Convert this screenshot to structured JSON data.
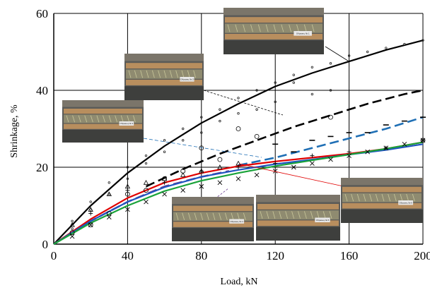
{
  "chart_data": {
    "type": "scatter",
    "xlabel": "Load, kN",
    "ylabel": "Shrinkage, %",
    "xlim": [
      0,
      200
    ],
    "ylim": [
      0,
      60
    ],
    "x_ticks": [
      0,
      40,
      80,
      120,
      160,
      200
    ],
    "y_ticks": [
      0,
      20,
      40,
      60
    ],
    "grid": true,
    "legend": "none",
    "curves": [
      {
        "style": "solid",
        "color": "#000000",
        "x": [
          0,
          20,
          40,
          60,
          80,
          100,
          120,
          140,
          160,
          180,
          200
        ],
        "y": [
          0,
          10,
          18.5,
          25.5,
          31.5,
          36.5,
          41,
          44.5,
          47.5,
          50.5,
          53
        ]
      },
      {
        "style": "dash",
        "color": "#000000",
        "x": [
          50,
          70,
          90,
          110,
          130,
          150,
          170,
          190,
          200
        ],
        "y": [
          15,
          19.5,
          23.5,
          27,
          30.5,
          33.5,
          36.5,
          39,
          40
        ]
      },
      {
        "style": "dash",
        "color": "#1f6fb5",
        "x": [
          100,
          120,
          140,
          160,
          180,
          200
        ],
        "y": [
          20.5,
          22.5,
          25,
          27.5,
          30,
          33
        ]
      },
      {
        "style": "solid",
        "color": "#e00000",
        "x": [
          0,
          20,
          40,
          60,
          80,
          100,
          120,
          140,
          160,
          180,
          200
        ],
        "y": [
          0,
          6.5,
          12,
          16,
          18.5,
          20.3,
          21.5,
          22.5,
          23.5,
          24.8,
          26.5
        ]
      },
      {
        "style": "dash",
        "color": "#6a3d8f",
        "x": [
          0,
          20,
          40,
          60,
          80,
          95
        ],
        "y": [
          0,
          6,
          11,
          15,
          17.5,
          19
        ]
      },
      {
        "style": "solid",
        "color": "#1f55c0",
        "x": [
          0,
          20,
          40,
          60,
          80,
          100,
          120,
          140,
          160,
          180,
          200
        ],
        "y": [
          0,
          6,
          11,
          14.8,
          17.5,
          19.3,
          20.8,
          22,
          23.3,
          24.5,
          26
        ]
      },
      {
        "style": "solid",
        "color": "#1aa33a",
        "x": [
          0,
          20,
          40,
          60,
          80,
          100,
          120,
          140,
          160,
          180,
          200
        ],
        "y": [
          0,
          5.5,
          10,
          13.8,
          16.5,
          18.5,
          20.3,
          21.8,
          23.3,
          24.8,
          26.5
        ]
      }
    ],
    "points": [
      {
        "marker": "dot",
        "x": [
          10,
          20,
          30,
          40,
          50,
          60,
          70,
          80,
          90,
          100,
          110,
          120,
          130,
          140,
          150,
          160,
          170,
          180,
          190,
          200
        ],
        "y": [
          6,
          11,
          16,
          20,
          23,
          27,
          30,
          33,
          35,
          38,
          40,
          42,
          44,
          46,
          47,
          49,
          50,
          51,
          52,
          53
        ]
      },
      {
        "marker": "dot",
        "x": [
          10,
          20,
          30,
          40,
          50,
          60,
          70,
          80,
          90,
          100,
          110,
          120,
          130,
          140,
          150
        ],
        "y": [
          4,
          9,
          13,
          17,
          21,
          24,
          27,
          29,
          32,
          34,
          35,
          37,
          42,
          39,
          40
        ]
      },
      {
        "marker": "circle",
        "x": [
          10,
          20,
          30,
          40,
          50,
          60,
          70,
          80,
          90,
          100,
          110,
          150,
          200
        ],
        "y": [
          3,
          5,
          8,
          13,
          14,
          17,
          19,
          25,
          22,
          30,
          28,
          33,
          27
        ]
      },
      {
        "marker": "triangle",
        "x": [
          10,
          20,
          30,
          40,
          50,
          60,
          70,
          80,
          90,
          100
        ],
        "y": [
          5,
          9,
          13,
          15,
          16,
          17,
          18,
          19,
          20,
          21
        ]
      },
      {
        "marker": "dash",
        "x": [
          120,
          130,
          140,
          150,
          160,
          170,
          180,
          190,
          200
        ],
        "y": [
          26,
          24,
          27,
          28,
          29,
          29,
          31,
          32,
          33
        ]
      },
      {
        "marker": "plus",
        "x": [
          20,
          40,
          60,
          80,
          100,
          120,
          140,
          160,
          180,
          200
        ],
        "y": [
          8,
          14,
          16,
          19,
          20,
          21,
          23,
          24,
          25,
          27
        ]
      },
      {
        "marker": "cross",
        "x": [
          10,
          20,
          30,
          40,
          50,
          60,
          70,
          80,
          90,
          100,
          110,
          120,
          130,
          140,
          150,
          160,
          170,
          180,
          190,
          200
        ],
        "y": [
          2,
          5,
          7,
          9,
          11,
          13,
          14,
          15,
          16,
          17,
          18,
          19,
          20,
          21,
          22,
          23,
          24,
          25,
          26,
          27
        ]
      }
    ],
    "photos": [
      {
        "caption": "Образец № 1"
      },
      {
        "caption": "Образец № 2"
      },
      {
        "caption": "Образец № 3"
      },
      {
        "caption": "Образец № 4"
      },
      {
        "caption": "Образец № 5"
      },
      {
        "caption": "Образец № 6"
      }
    ]
  }
}
